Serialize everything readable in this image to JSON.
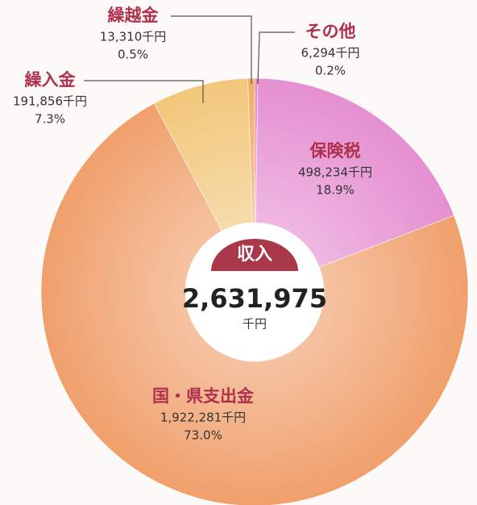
{
  "chart_data": {
    "type": "donut",
    "center_title": "収入",
    "total": 2631975,
    "total_label": "2,631,975",
    "total_unit": "千円",
    "categories": [
      "その他",
      "保険税",
      "国・県支出金",
      "繰入金",
      "繰越金"
    ],
    "values": [
      6294,
      498234,
      1922281,
      191856,
      13310
    ],
    "value_labels": [
      "6,294千円",
      "498,234千円",
      "1,922,281千円",
      "191,856千円",
      "13,310千円"
    ],
    "percents": [
      0.2,
      18.9,
      73.0,
      7.3,
      0.5
    ],
    "percent_labels": [
      "0.2%",
      "18.9%",
      "73.0%",
      "7.3%",
      "0.5%"
    ],
    "colors": [
      "#e58ab8",
      "#e58fd0",
      "#f0a06c",
      "#f2c77a",
      "#f2ad62"
    ]
  }
}
